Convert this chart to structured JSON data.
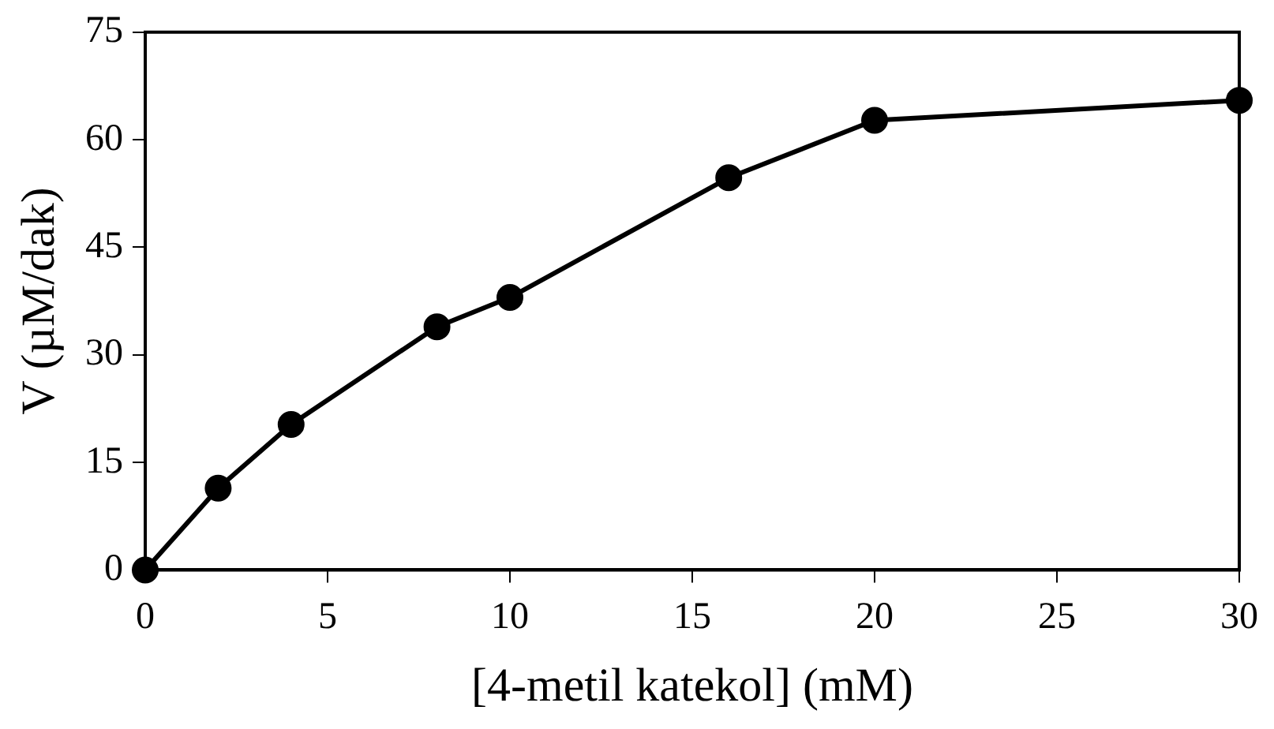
{
  "chart_data": {
    "type": "line",
    "xlabel": "[4-metil katekol] (mM)",
    "ylabel": "V (µM/dak)",
    "x": [
      0,
      2,
      4,
      8,
      10,
      16,
      20,
      30
    ],
    "series": [
      {
        "color": "#000000",
        "values": [
          0,
          11.4,
          20.3,
          33.9,
          38.0,
          54.7,
          62.7,
          65.5
        ]
      }
    ],
    "xlim": [
      0,
      30
    ],
    "xticks": [
      0,
      5,
      10,
      15,
      20,
      25,
      30
    ],
    "ylim": [
      0,
      75
    ],
    "yticks": [
      0,
      15,
      30,
      45,
      60,
      75
    ],
    "grid": false,
    "legend": false,
    "marker": "circle",
    "line_style": "solid"
  }
}
